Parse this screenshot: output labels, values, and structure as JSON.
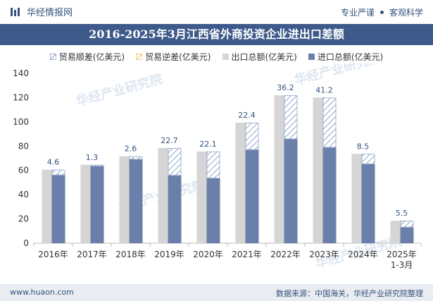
{
  "header": {
    "brand": "华经情报网",
    "tag1": "专业严谨",
    "tag2": "客观科学"
  },
  "title": "2016-2025年3月江西省外商投资企业进出口差额",
  "legend": {
    "surplus": "贸易顺差(亿美元)",
    "deficit": "贸易逆差(亿美元)",
    "export": "出口总额(亿美元)",
    "import": "进口总额(亿美元)"
  },
  "footer": {
    "url": "www.huaon.com",
    "source": "数据来源：中国海关，华经产业研究院整理"
  },
  "colors": {
    "export": "#d5d5d5",
    "import": "#6a80aa",
    "surplus_stripe": "#7a94c0",
    "title_bg": "#3e5a8a"
  },
  "chart_data": {
    "type": "bar",
    "title": "2016-2025年3月江西省外商投资企业进出口差额",
    "categories": [
      "2016年",
      "2017年",
      "2018年",
      "2019年",
      "2020年",
      "2021年",
      "2022年",
      "2023年",
      "2024年",
      "2025年 1-3月"
    ],
    "series": [
      {
        "name": "出口总额(亿美元)",
        "values": [
          60.6,
          64.6,
          71.6,
          78.4,
          75.5,
          99.3,
          121.9,
          120.0,
          73.6,
          18.5
        ]
      },
      {
        "name": "进口总额(亿美元)",
        "values": [
          56.0,
          63.3,
          69.0,
          55.7,
          53.4,
          76.9,
          85.7,
          78.8,
          65.1,
          13.0
        ]
      },
      {
        "name": "贸易顺差(亿美元)",
        "values": [
          4.6,
          1.3,
          2.6,
          22.7,
          22.1,
          22.4,
          36.2,
          41.2,
          8.5,
          5.5
        ]
      }
    ],
    "ylim": [
      0,
      140
    ],
    "yticks": [
      0,
      20,
      40,
      60,
      80,
      100,
      120,
      140
    ],
    "xlabel": "",
    "ylabel": "",
    "legend_position": "top"
  }
}
